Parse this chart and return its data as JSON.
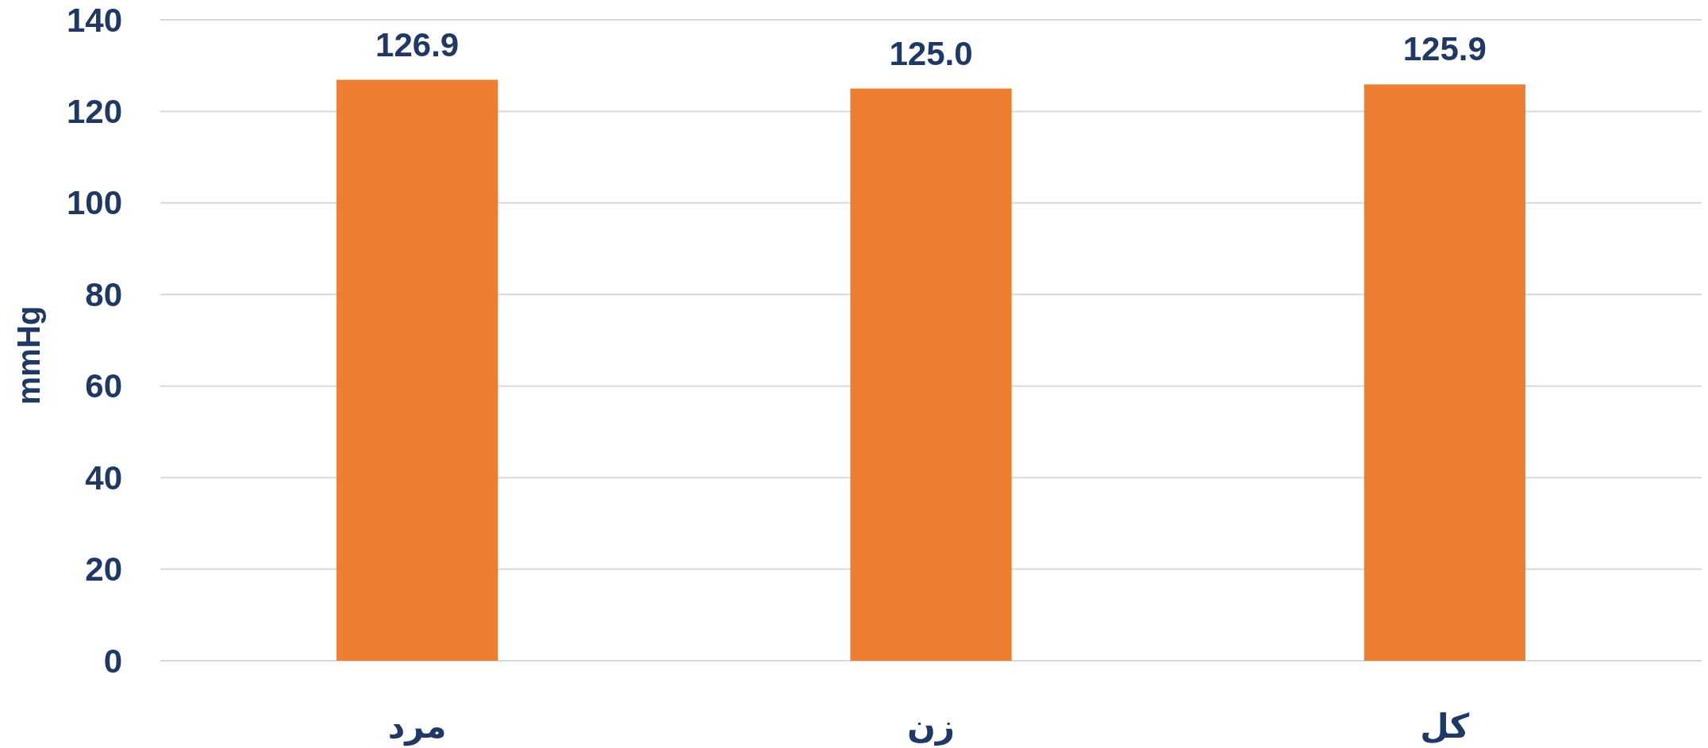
{
  "chart_data": {
    "type": "bar",
    "ylabel": "mmHg",
    "categories": [
      "مرد",
      "زن",
      "کل"
    ],
    "values": [
      126.9,
      125.0,
      125.9
    ],
    "color": "#ed7d31",
    "value_labels": [
      "126.9",
      "125.0",
      "125.9"
    ],
    "ylim": [
      0,
      140
    ],
    "yticks": [
      0,
      20,
      40,
      60,
      80,
      100,
      120,
      140
    ],
    "grid": "y"
  }
}
